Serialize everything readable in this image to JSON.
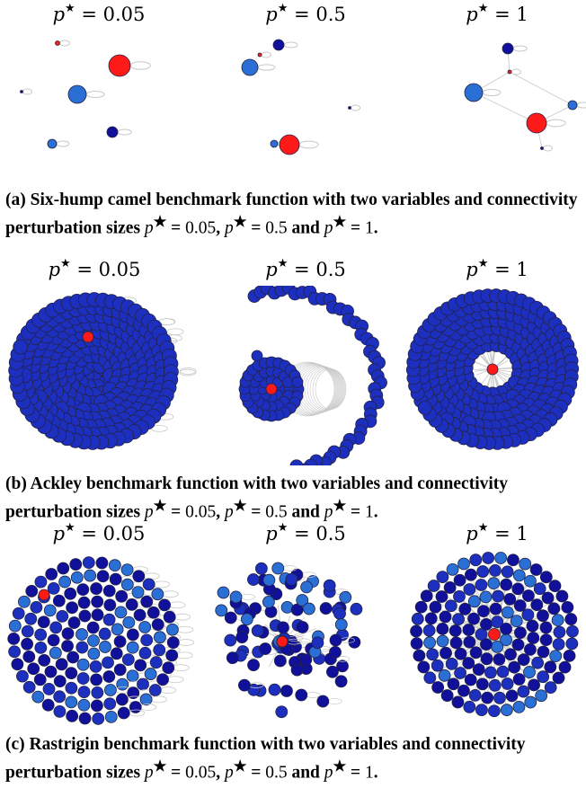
{
  "colors": {
    "red_node": "#ff1a1a",
    "blue_node": "#2a6fd6",
    "navy_node": "#10109a",
    "mid_blue": "#1d2fbf",
    "edge": "#c8c8c8",
    "node_stroke": "#222244"
  },
  "panels": [
    {
      "id": "a",
      "subtitles": [
        "p★ = 0.05",
        "p★ = 0.5",
        "p★ = 1"
      ],
      "caption": "(a) Six-hump camel benchmark function with two variables and connectivity perturbation sizes p★ = 0.05, p★ = 0.5 and p★ = 1."
    },
    {
      "id": "b",
      "subtitles": [
        "p★ = 0.05",
        "p★ = 0.5",
        "p★ = 1"
      ],
      "caption": "(b) Ackley benchmark function with two variables and connectivity perturbation sizes p★ = 0.05, p★ = 0.5 and p★ = 1."
    },
    {
      "id": "c",
      "subtitles": [
        "p★ = 0.05",
        "p★ = 0.5",
        "p★ = 1"
      ],
      "caption": "(c) Rastrigin benchmark function with two variables and connectivity perturbation sizes p★ = 0.05, p★ = 0.5 and p★ = 1."
    }
  ],
  "title_parts": {
    "var": "p",
    "star": "★",
    "eq": " = "
  },
  "p_values": [
    "0.05",
    "0.5",
    "1"
  ],
  "caption_parts": [
    {
      "label": "(a)",
      "text1": "Six-hump camel benchmark function with two variables and connectivity perturbation sizes",
      "sep": ",",
      "and": "and"
    },
    {
      "label": "(b)",
      "text1": "Ackley benchmark function with two variables and connectivity perturbation sizes",
      "sep": ",",
      "and": "and"
    },
    {
      "label": "(c)",
      "text1": "Rastrigin benchmark function with two variables and connectivity perturbation sizes",
      "sep": ",",
      "and": "and"
    }
  ]
}
